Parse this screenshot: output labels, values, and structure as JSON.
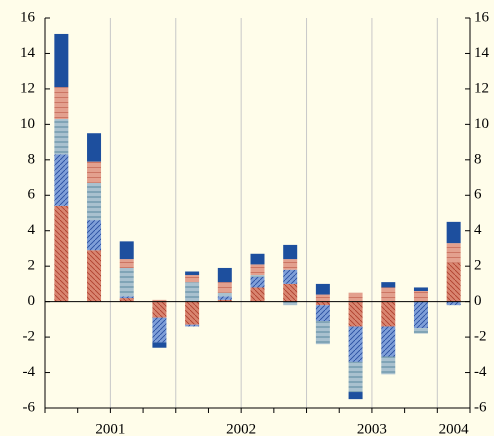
{
  "chart_data": {
    "type": "stacked_bar",
    "series": [
      {
        "color": "#d98570",
        "hatch": "backslash",
        "values": [
          5.4,
          2.9,
          0.2,
          -0.9,
          -1.3,
          0.1,
          0.8,
          1.0,
          -0.2,
          -1.4,
          -1.4,
          0,
          2.2
        ]
      },
      {
        "color": "#7f9fd8",
        "hatch": "slash",
        "values": [
          2.9,
          1.7,
          0.1,
          -1.4,
          -0.1,
          0.2,
          0.6,
          0.8,
          -0.9,
          -2.0,
          -1.7,
          -1.5,
          -0.2
        ]
      },
      {
        "color": "#a9c1cf",
        "hatch": "horizontal",
        "values": [
          2.0,
          2.1,
          1.6,
          0,
          1.1,
          0.2,
          0.1,
          -0.2,
          -1.3,
          -1.7,
          -1.0,
          -0.3,
          0
        ]
      },
      {
        "color": "#e3a08e",
        "hatch": "cross",
        "values": [
          1.8,
          1.2,
          0.5,
          0.1,
          0.4,
          0.6,
          0.6,
          0.6,
          0.4,
          0.5,
          0.8,
          0.6,
          1.1
        ]
      },
      {
        "color": "#1d4f9e",
        "hatch": "none",
        "values": [
          3.0,
          1.6,
          1.0,
          -0.3,
          0.2,
          0.8,
          0.6,
          0.8,
          0.6,
          -0.4,
          0.3,
          0.2,
          1.2
        ]
      }
    ],
    "year_groups": [
      {
        "label": "2001",
        "count": 4
      },
      {
        "label": "2002",
        "count": 4
      },
      {
        "label": "2003",
        "count": 4
      },
      {
        "label": "2004",
        "count": 1
      }
    ],
    "ylim": [
      -6,
      16
    ],
    "yticks": [
      -6,
      -4,
      -2,
      0,
      2,
      4,
      6,
      8,
      10,
      12,
      14,
      16
    ]
  }
}
